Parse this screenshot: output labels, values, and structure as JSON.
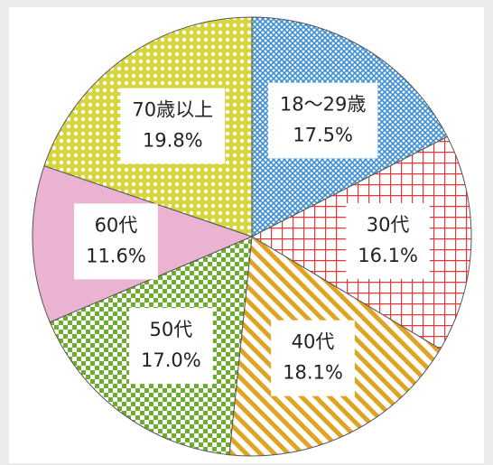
{
  "chart_data": {
    "type": "pie",
    "categories": [
      "18～29歳",
      "30代",
      "40代",
      "50代",
      "60代",
      "70歳以上"
    ],
    "values": [
      17.5,
      16.1,
      18.1,
      17.0,
      11.6,
      19.8
    ],
    "value_labels": [
      "17.5%",
      "16.1%",
      "18.1%",
      "17.0%",
      "11.6%",
      "19.8%"
    ],
    "colors": [
      "#3b8fd4",
      "#e23b3b",
      "#e0a424",
      "#6cad2e",
      "#eab3d2",
      "#d6d63c"
    ],
    "patterns": [
      "crosshatch",
      "grid",
      "stripes",
      "checker",
      "solid",
      "dots"
    ]
  }
}
